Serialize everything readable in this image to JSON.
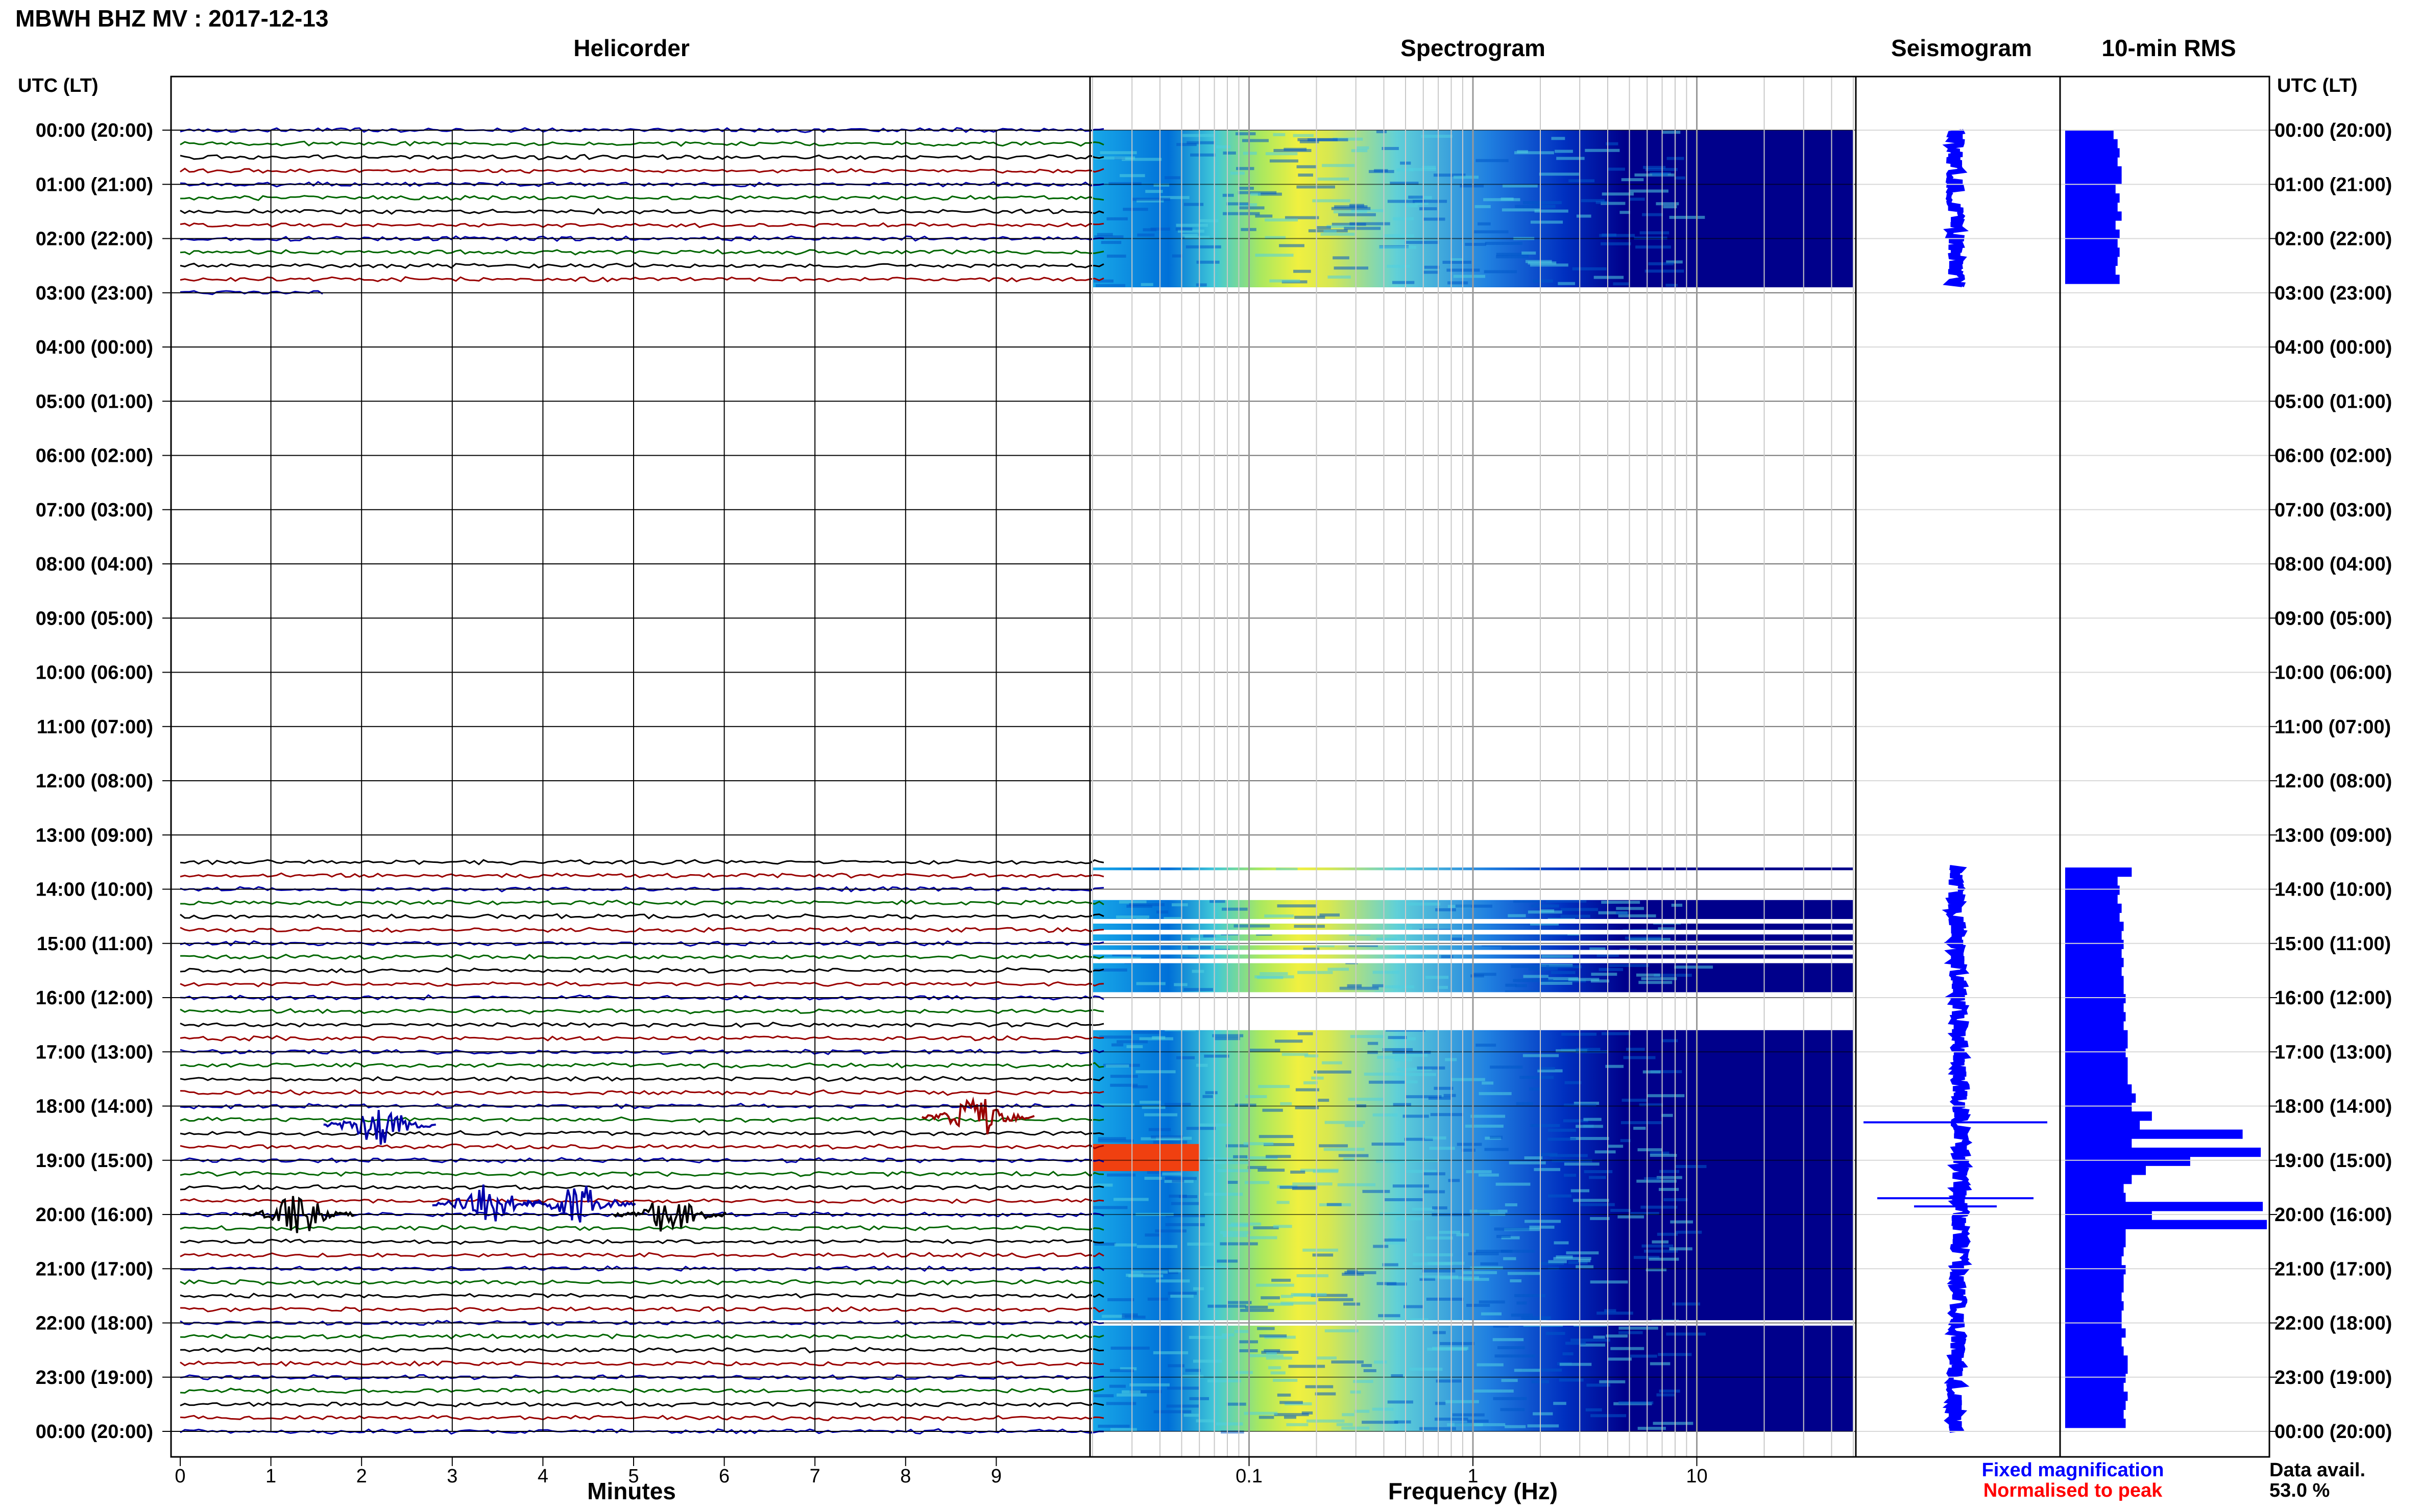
{
  "title": "MBWH BHZ MV : 2017-12-13",
  "axis_header": "UTC (LT)",
  "panels": {
    "helicorder": "Helicorder",
    "spectrogram": "Spectrogram",
    "seismogram": "Seismogram",
    "rms": "10-min RMS"
  },
  "legend": {
    "fixed": "Fixed magnification",
    "normalised": "Normalised to peak",
    "fixed_color": "#0000ff",
    "normalised_color": "#ff0000"
  },
  "data_avail": {
    "label": "Data avail.",
    "value": "53.0 %"
  },
  "colors": {
    "trace_cycle": [
      "#0000aa",
      "#006600",
      "#000000",
      "#990000"
    ],
    "spectrum_background": "#00008b"
  },
  "chart_data": [
    {
      "type": "line",
      "panel": "Helicorder",
      "xlabel": "Minutes",
      "x_ticks": [
        0,
        1,
        2,
        3,
        4,
        5,
        6,
        7,
        8,
        9
      ],
      "xlim": [
        0,
        10
      ],
      "y_ticks": [
        "00:00 (20:00)",
        "01:00 (21:00)",
        "02:00 (22:00)",
        "03:00 (23:00)",
        "04:00 (00:00)",
        "05:00 (01:00)",
        "06:00 (02:00)",
        "07:00 (03:00)",
        "08:00 (04:00)",
        "09:00 (05:00)",
        "10:00 (06:00)",
        "11:00 (07:00)",
        "12:00 (08:00)",
        "13:00 (09:00)",
        "14:00 (10:00)",
        "15:00 (11:00)",
        "16:00 (12:00)",
        "17:00 (13:00)",
        "18:00 (14:00)",
        "19:00 (15:00)",
        "20:00 (16:00)",
        "21:00 (17:00)",
        "22:00 (18:00)",
        "23:00 (19:00)",
        "00:00 (20:00)"
      ],
      "ylim_hours": [
        0,
        24
      ],
      "data_segments_hours": [
        [
          0,
          2.9
        ],
        [
          13.6,
          24
        ]
      ],
      "events": [
        {
          "hour": 18.35,
          "minute": 2.2,
          "color": "#0000aa"
        },
        {
          "hour": 18.2,
          "minute": 8.8,
          "color": "#990000"
        },
        {
          "hour": 20.0,
          "minute": 1.3,
          "color": "#000000"
        },
        {
          "hour": 19.8,
          "minute": 3.4,
          "color": "#0000aa"
        },
        {
          "hour": 19.8,
          "minute": 4.4,
          "color": "#0000aa"
        },
        {
          "hour": 20.0,
          "minute": 5.4,
          "color": "#000000"
        }
      ]
    },
    {
      "type": "heatmap",
      "panel": "Spectrogram",
      "xlabel": "Frequency (Hz)",
      "x_scale": "log",
      "xlim": [
        0.02,
        50
      ],
      "x_ticks": [
        0.1,
        1,
        10
      ],
      "x_tick_labels": [
        "0.1",
        "1",
        "10"
      ],
      "ylim_hours": [
        0,
        24
      ],
      "peak_frequency_hz": 0.22,
      "gap_bands_hours": [
        [
          2.9,
          13.6
        ],
        [
          13.65,
          14.2
        ],
        [
          15.9,
          16.6
        ],
        [
          21.95,
          22.05
        ]
      ],
      "high_energy_band": {
        "hours": [
          18.7,
          19.2
        ],
        "freq_hz": [
          0.02,
          0.06
        ]
      }
    },
    {
      "type": "line",
      "panel": "Seismogram",
      "ylim_hours": [
        0,
        24
      ],
      "segments_hours": [
        [
          0,
          2.9
        ],
        [
          13.6,
          24
        ]
      ],
      "spikes": [
        {
          "hour": 18.3,
          "amplitude": 1.0
        },
        {
          "hour": 19.7,
          "amplitude": 0.85
        },
        {
          "hour": 19.85,
          "amplitude": 0.45
        }
      ]
    },
    {
      "type": "bar",
      "panel": "10-min RMS",
      "orientation": "horizontal",
      "ylim_hours": [
        0,
        24
      ],
      "xlim": [
        0,
        1
      ],
      "segments": [
        {
          "start_hour": 0.0,
          "values": [
            0.24,
            0.26,
            0.27,
            0.26,
            0.28,
            0.28,
            0.25,
            0.27,
            0.26,
            0.28,
            0.25,
            0.27,
            0.26,
            0.27,
            0.26,
            0.25,
            0.27
          ]
        },
        {
          "start_hour": 13.6,
          "values": [
            0.33,
            0.26,
            0.27,
            0.26,
            0.28,
            0.27,
            0.29,
            0.28,
            0.29,
            0.28,
            0.29,
            0.28,
            0.29,
            0.29,
            0.3,
            0.29,
            0.3,
            0.29,
            0.31,
            0.31,
            0.3,
            0.31,
            0.31,
            0.31,
            0.33,
            0.35,
            0.33,
            0.43,
            0.37,
            0.88,
            0.33,
            0.97,
            0.62,
            0.4,
            0.33,
            0.29,
            0.3,
            0.98,
            0.43,
            1.0,
            0.3,
            0.3,
            0.29,
            0.28,
            0.3,
            0.29,
            0.29,
            0.28,
            0.29,
            0.28,
            0.28,
            0.3,
            0.28,
            0.29,
            0.31,
            0.31,
            0.3,
            0.29,
            0.31,
            0.3,
            0.29,
            0.3
          ]
        }
      ]
    }
  ]
}
